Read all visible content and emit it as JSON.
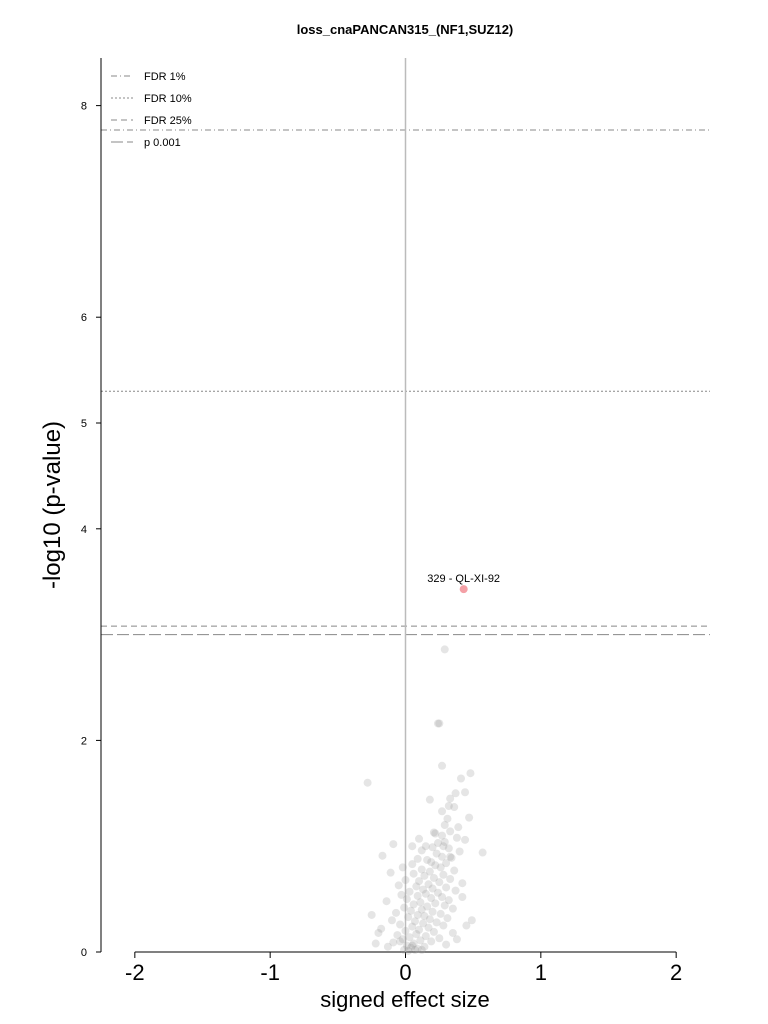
{
  "chart_data": {
    "type": "scatter",
    "title": "loss_cnaPANCAN315_(NF1,SUZ12)",
    "xlabel": "signed effect size",
    "ylabel": "-log10 (p-value)",
    "xlim": [
      -2.25,
      2.25
    ],
    "ylim": [
      0,
      8.45
    ],
    "xticks": [
      -2,
      -1,
      0,
      1,
      2
    ],
    "yticks": [
      0,
      2,
      4,
      5,
      6,
      8
    ],
    "zero_line": {
      "x": 0,
      "color": "#bbbbbb"
    },
    "thresholds": [
      {
        "name": "FDR 1%",
        "y": 7.77,
        "style": "dashdot"
      },
      {
        "name": "FDR 10%",
        "y": 5.3,
        "style": "dotted"
      },
      {
        "name": "FDR 25%",
        "y": 3.08,
        "style": "dashed"
      },
      {
        "name": "p 0.001",
        "y": 3.0,
        "style": "longdash"
      }
    ],
    "legend_position": "top-left",
    "highlight": {
      "x": 0.43,
      "y": 3.43,
      "label": "329 - QL-XI-92",
      "color": "#f4a0a6"
    },
    "series": [
      {
        "color": "#999999",
        "points": [
          [
            0.29,
            2.86
          ],
          [
            0.24,
            2.16
          ],
          [
            0.25,
            2.16
          ],
          [
            0.27,
            1.76
          ],
          [
            0.48,
            1.69
          ],
          [
            0.41,
            1.64
          ],
          [
            -0.28,
            1.6
          ],
          [
            0.44,
            1.51
          ],
          [
            0.37,
            1.5
          ],
          [
            0.33,
            1.45
          ],
          [
            0.18,
            1.44
          ],
          [
            0.32,
            1.38
          ],
          [
            0.36,
            1.37
          ],
          [
            0.27,
            1.33
          ],
          [
            0.47,
            1.27
          ],
          [
            0.31,
            1.26
          ],
          [
            0.29,
            1.2
          ],
          [
            0.39,
            1.18
          ],
          [
            0.33,
            1.14
          ],
          [
            0.21,
            1.13
          ],
          [
            0.22,
            1.12
          ],
          [
            0.27,
            1.1
          ],
          [
            0.38,
            1.08
          ],
          [
            0.1,
            1.07
          ],
          [
            0.44,
            1.06
          ],
          [
            0.29,
            1.04
          ],
          [
            0.24,
            1.03
          ],
          [
            -0.09,
            1.02
          ],
          [
            0.05,
            1.0
          ],
          [
            0.15,
            1.0
          ],
          [
            0.2,
            0.99
          ],
          [
            0.32,
            0.98
          ],
          [
            0.12,
            0.96
          ],
          [
            0.4,
            0.95
          ],
          [
            0.57,
            0.94
          ],
          [
            0.23,
            0.93
          ],
          [
            -0.17,
            0.91
          ],
          [
            0.27,
            0.9
          ],
          [
            0.34,
            0.89
          ],
          [
            0.09,
            0.88
          ],
          [
            0.16,
            0.87
          ],
          [
            0.19,
            0.85
          ],
          [
            0.3,
            0.84
          ],
          [
            0.05,
            0.83
          ],
          [
            0.22,
            0.82
          ],
          [
            -0.02,
            0.8
          ],
          [
            0.26,
            0.8
          ],
          [
            0.12,
            0.78
          ],
          [
            0.36,
            0.77
          ],
          [
            0.18,
            0.76
          ],
          [
            -0.11,
            0.75
          ],
          [
            0.06,
            0.74
          ],
          [
            0.28,
            0.73
          ],
          [
            0.14,
            0.72
          ],
          [
            0.21,
            0.7
          ],
          [
            0.33,
            0.69
          ],
          [
            0.0,
            0.68
          ],
          [
            0.1,
            0.67
          ],
          [
            0.25,
            0.66
          ],
          [
            0.42,
            0.65
          ],
          [
            0.17,
            0.64
          ],
          [
            -0.05,
            0.63
          ],
          [
            0.08,
            0.62
          ],
          [
            0.3,
            0.61
          ],
          [
            0.2,
            0.6
          ],
          [
            0.13,
            0.59
          ],
          [
            0.37,
            0.58
          ],
          [
            0.03,
            0.57
          ],
          [
            0.24,
            0.56
          ],
          [
            0.15,
            0.55
          ],
          [
            -0.03,
            0.54
          ],
          [
            0.09,
            0.53
          ],
          [
            0.27,
            0.52
          ],
          [
            0.19,
            0.51
          ],
          [
            0.01,
            0.5
          ],
          [
            0.32,
            0.49
          ],
          [
            -0.14,
            0.48
          ],
          [
            0.11,
            0.47
          ],
          [
            0.22,
            0.46
          ],
          [
            0.06,
            0.45
          ],
          [
            0.29,
            0.44
          ],
          [
            0.16,
            0.43
          ],
          [
            -0.01,
            0.42
          ],
          [
            0.35,
            0.41
          ],
          [
            0.12,
            0.4
          ],
          [
            0.04,
            0.39
          ],
          [
            0.2,
            0.38
          ],
          [
            -0.07,
            0.37
          ],
          [
            0.26,
            0.36
          ],
          [
            0.09,
            0.35
          ],
          [
            0.14,
            0.34
          ],
          [
            0.02,
            0.33
          ],
          [
            0.31,
            0.32
          ],
          [
            0.18,
            0.31
          ],
          [
            -0.1,
            0.3
          ],
          [
            0.07,
            0.29
          ],
          [
            0.23,
            0.28
          ],
          [
            0.13,
            0.27
          ],
          [
            -0.04,
            0.26
          ],
          [
            0.28,
            0.25
          ],
          [
            0.05,
            0.24
          ],
          [
            0.17,
            0.23
          ],
          [
            -0.18,
            0.22
          ],
          [
            0.1,
            0.21
          ],
          [
            0.0,
            0.2
          ],
          [
            0.21,
            0.19
          ],
          [
            0.35,
            0.18
          ],
          [
            0.08,
            0.17
          ],
          [
            -0.06,
            0.16
          ],
          [
            0.15,
            0.15
          ],
          [
            0.03,
            0.14
          ],
          [
            0.25,
            0.13
          ],
          [
            -0.02,
            0.12
          ],
          [
            0.11,
            0.11
          ],
          [
            0.19,
            0.1
          ],
          [
            -0.09,
            0.09
          ],
          [
            0.06,
            0.08
          ],
          [
            0.3,
            0.07
          ],
          [
            0.01,
            0.06
          ],
          [
            0.14,
            0.05
          ],
          [
            -0.13,
            0.05
          ],
          [
            0.04,
            0.04
          ],
          [
            0.09,
            0.03
          ],
          [
            -0.01,
            0.02
          ],
          [
            0.07,
            0.02
          ],
          [
            0.02,
            0.01
          ],
          [
            -0.2,
            0.18
          ],
          [
            -0.22,
            0.08
          ],
          [
            0.38,
            0.12
          ],
          [
            0.45,
            0.25
          ],
          [
            0.42,
            0.52
          ],
          [
            0.49,
            0.3
          ],
          [
            -0.25,
            0.35
          ],
          [
            0.33,
            0.9
          ],
          [
            0.28,
            1.0
          ],
          [
            0.05,
            0.06
          ],
          [
            0.12,
            0.02
          ],
          [
            -0.04,
            0.1
          ]
        ]
      }
    ]
  }
}
